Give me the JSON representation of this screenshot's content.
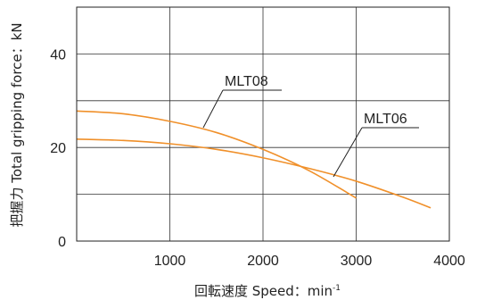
{
  "chart_data": {
    "type": "line",
    "title": "",
    "xlabel": "回転速度 Speed：min",
    "xlabel_superscript": "-1",
    "ylabel": "把握力  Total gripping force：kN",
    "xlim": [
      0,
      4000
    ],
    "ylim": [
      0,
      50
    ],
    "x_ticks": [
      1000,
      2000,
      3000,
      4000
    ],
    "x_tick_labels": [
      "1000",
      "2000",
      "3000",
      "4000"
    ],
    "y_gridlines": [
      10,
      20,
      30,
      40
    ],
    "y_tick_labels": [
      {
        "value": 0,
        "label": "0"
      },
      {
        "value": 20,
        "label": "20"
      },
      {
        "value": 40,
        "label": "40"
      }
    ],
    "grid": true,
    "series_color": "#f0902a",
    "series": [
      {
        "name": "MLT08",
        "x": [
          0,
          500,
          1000,
          1500,
          2000,
          2500,
          3000
        ],
        "y": [
          27.8,
          27.2,
          25.6,
          23.2,
          19.6,
          15.0,
          9.2
        ]
      },
      {
        "name": "MLT06",
        "x": [
          0,
          500,
          1000,
          1500,
          2000,
          2500,
          3000,
          3500,
          3800
        ],
        "y": [
          21.8,
          21.5,
          20.8,
          19.6,
          17.8,
          15.5,
          12.8,
          9.4,
          7.1
        ]
      }
    ]
  }
}
